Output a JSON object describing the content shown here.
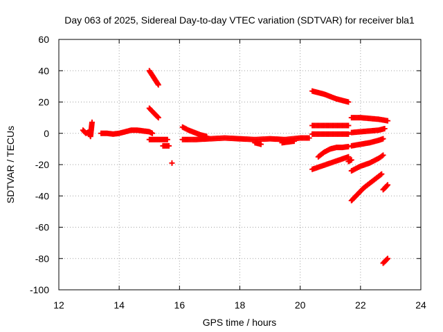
{
  "chart_data": {
    "type": "scatter",
    "title": "Day 063 of 2025, Sidereal Day-to-day VTEC variation (SDTVAR) for receiver bla1",
    "xlabel": "GPS time / hours",
    "ylabel": "SDTVAR / TECUs",
    "xlim": [
      12,
      24
    ],
    "ylim": [
      -100,
      60
    ],
    "xticks": [
      "12",
      "14",
      "16",
      "18",
      "20",
      "22",
      "24"
    ],
    "yticks": [
      "-100",
      "-80",
      "-60",
      "-40",
      "-20",
      "0",
      "20",
      "40",
      "60"
    ],
    "grid": true,
    "marker": "+",
    "color": "#ff0000",
    "series": [
      {
        "name": "s1",
        "x": [
          12.8,
          12.9,
          13.0,
          13.05,
          13.1
        ],
        "y": [
          2,
          0,
          1,
          -2,
          7
        ]
      },
      {
        "name": "s2",
        "x": [
          13.4,
          13.6,
          13.8,
          14.0,
          14.2,
          14.4,
          14.6,
          14.8,
          15.0,
          15.1
        ],
        "y": [
          0,
          0,
          -0.5,
          0,
          1,
          2,
          2,
          1.5,
          1,
          0
        ]
      },
      {
        "name": "s3",
        "x": [
          15.0,
          15.1,
          15.2,
          15.3
        ],
        "y": [
          40,
          37,
          34,
          31
        ]
      },
      {
        "name": "s4",
        "x": [
          15.0,
          15.1,
          15.2,
          15.3
        ],
        "y": [
          16,
          14,
          12,
          10
        ]
      },
      {
        "name": "s5",
        "x": [
          15.0,
          15.2,
          15.4,
          15.6
        ],
        "y": [
          -4,
          -4,
          -4,
          -4
        ]
      },
      {
        "name": "s6",
        "x": [
          15.45,
          15.55,
          15.65
        ],
        "y": [
          -8,
          -8,
          -8
        ]
      },
      {
        "name": "s7",
        "x": [
          15.75
        ],
        "y": [
          -19
        ]
      },
      {
        "name": "s8",
        "x": [
          16.1,
          16.3,
          16.5,
          16.7,
          16.9
        ],
        "y": [
          4,
          2,
          0.5,
          -1,
          -2
        ]
      },
      {
        "name": "s9",
        "x": [
          16.1,
          16.5,
          17.0,
          17.5,
          18.0,
          18.5,
          19.0,
          19.5,
          20.0,
          20.3
        ],
        "y": [
          -4,
          -4,
          -3.5,
          -3,
          -3.5,
          -4,
          -3.5,
          -4,
          -3,
          -3
        ]
      },
      {
        "name": "s10",
        "x": [
          18.5,
          18.7
        ],
        "y": [
          -6,
          -7
        ]
      },
      {
        "name": "s11",
        "x": [
          19.4,
          19.6,
          19.8
        ],
        "y": [
          -6,
          -5.5,
          -5
        ]
      },
      {
        "name": "s12",
        "x": [
          20.4,
          20.6,
          20.8,
          21.0,
          21.2,
          21.4,
          21.6
        ],
        "y": [
          27,
          26,
          25,
          23.5,
          22,
          21,
          20
        ]
      },
      {
        "name": "s13",
        "x": [
          20.4,
          20.7,
          21.0,
          21.3,
          21.6
        ],
        "y": [
          5,
          5,
          5,
          5,
          5
        ]
      },
      {
        "name": "s14",
        "x": [
          21.7,
          22.0,
          22.3,
          22.6,
          22.9
        ],
        "y": [
          10,
          10,
          9.5,
          9,
          8
        ]
      },
      {
        "name": "s15",
        "x": [
          20.4,
          20.7,
          21.0,
          21.3,
          21.6
        ],
        "y": [
          -0.5,
          -0.5,
          -0.5,
          -0.5,
          -0.5
        ]
      },
      {
        "name": "s16",
        "x": [
          21.7,
          22.0,
          22.3,
          22.6,
          22.8
        ],
        "y": [
          0.5,
          1,
          1.5,
          2,
          3
        ]
      },
      {
        "name": "s17",
        "x": [
          20.6,
          20.8,
          21.0,
          21.2,
          21.4,
          21.6
        ],
        "y": [
          -15,
          -12,
          -10,
          -9,
          -9,
          -8.5
        ]
      },
      {
        "name": "s18",
        "x": [
          21.7,
          22.0,
          22.3,
          22.6,
          22.75
        ],
        "y": [
          -8,
          -7,
          -6,
          -4.5,
          -3.5
        ]
      },
      {
        "name": "s19",
        "x": [
          20.4,
          20.7,
          21.0,
          21.3,
          21.6
        ],
        "y": [
          -23,
          -21,
          -19,
          -17,
          -15
        ]
      },
      {
        "name": "s20",
        "x": [
          21.6,
          21.7
        ],
        "y": [
          -18,
          -17
        ]
      },
      {
        "name": "s21",
        "x": [
          21.7,
          22.0,
          22.3,
          22.6,
          22.75
        ],
        "y": [
          -24,
          -21,
          -19,
          -16,
          -14
        ]
      },
      {
        "name": "s22",
        "x": [
          21.7,
          21.9,
          22.1,
          22.3,
          22.5,
          22.7
        ],
        "y": [
          -43,
          -39,
          -35,
          -32,
          -29,
          -26
        ]
      },
      {
        "name": "s23",
        "x": [
          22.75,
          22.85,
          22.9
        ],
        "y": [
          -36,
          -34,
          -33
        ]
      },
      {
        "name": "s24",
        "x": [
          22.75,
          22.85,
          22.9
        ],
        "y": [
          -83,
          -81,
          -80
        ]
      }
    ]
  }
}
